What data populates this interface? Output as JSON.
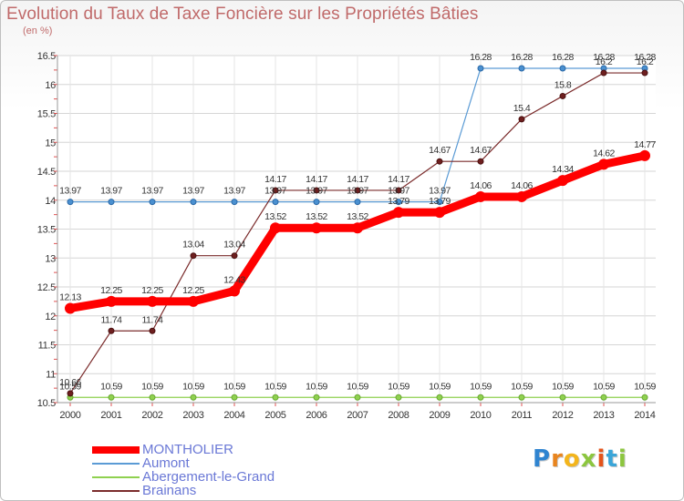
{
  "title": "Evolution du Taux de Taxe Foncière sur les Propriétés Bâties",
  "unit_label": "(en %)",
  "logo_text": "Proxiti",
  "chart_data": {
    "type": "line",
    "title": "Evolution du Taux de Taxe Foncière sur les Propriétés Bâties",
    "ylabel": "(en %)",
    "xlabel": "",
    "x": [
      "2000",
      "2001",
      "2002",
      "2003",
      "2004",
      "2005",
      "2006",
      "2007",
      "2008",
      "2009",
      "2010",
      "2011",
      "2012",
      "2013",
      "2014"
    ],
    "ylim": [
      10.5,
      16.5
    ],
    "yticks": [
      "10.5",
      "11",
      "11.5",
      "12",
      "12.5",
      "13",
      "13.5",
      "14",
      "14.5",
      "15",
      "15.5",
      "16",
      "16.5"
    ],
    "grid": true,
    "legend_position": "bottom-left",
    "series": [
      {
        "name": "MONTHOLIER",
        "color": "#ff0000",
        "values": [
          12.13,
          12.25,
          12.25,
          12.25,
          12.43,
          13.52,
          13.52,
          13.52,
          13.79,
          13.79,
          14.06,
          14.06,
          14.34,
          14.62,
          14.77
        ],
        "labels": [
          "12.13",
          "12.25",
          "12.25",
          "12.25",
          "12.43",
          "13.52",
          "13.52",
          "13.52",
          "13.79",
          "13.79",
          "14.06",
          "14.06",
          "14.34",
          "14.62",
          "14.77"
        ]
      },
      {
        "name": "Aumont",
        "color": "#5b9bd5",
        "values": [
          13.97,
          13.97,
          13.97,
          13.97,
          13.97,
          13.97,
          13.97,
          13.97,
          13.97,
          13.97,
          16.28,
          16.28,
          16.28,
          16.28,
          16.28
        ],
        "labels": [
          "13.97",
          "13.97",
          "13.97",
          "13.97",
          "13.97",
          "13.97",
          "13.97",
          "13.97",
          "13.97",
          "13.97",
          "16.28",
          "16.28",
          "16.28",
          "16.28",
          "16.28"
        ]
      },
      {
        "name": "Abergement-le-Grand",
        "color": "#8fd14f",
        "values": [
          10.59,
          10.59,
          10.59,
          10.59,
          10.59,
          10.59,
          10.59,
          10.59,
          10.59,
          10.59,
          10.59,
          10.59,
          10.59,
          10.59,
          10.59
        ],
        "labels": [
          "10.59",
          "10.59",
          "10.59",
          "10.59",
          "10.59",
          "10.59",
          "10.59",
          "10.59",
          "10.59",
          "10.59",
          "10.59",
          "10.59",
          "10.59",
          "10.59",
          "10.59"
        ]
      },
      {
        "name": "Brainans",
        "color": "#7b2c2c",
        "values": [
          10.66,
          11.74,
          11.74,
          13.04,
          13.04,
          14.17,
          14.17,
          14.17,
          14.17,
          14.67,
          14.67,
          15.4,
          15.8,
          16.2,
          16.2
        ],
        "labels": [
          "10.66",
          "11.74",
          "11.74",
          "13.04",
          "13.04",
          "14.17",
          "14.17",
          "14.17",
          "14.17",
          "14.67",
          "14.67",
          "15.4",
          "15.8",
          "16.2",
          "16.2"
        ]
      }
    ]
  }
}
